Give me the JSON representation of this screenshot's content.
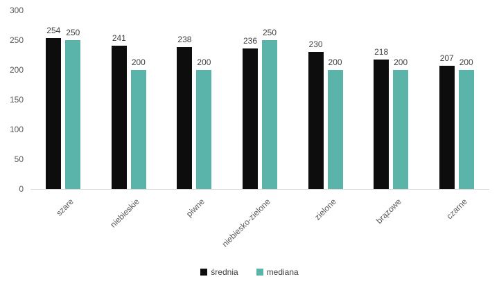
{
  "chart_data": {
    "type": "bar",
    "title": "",
    "xlabel": "",
    "ylabel": "",
    "categories": [
      "szare",
      "niebieskie",
      "piwne",
      "niebiesko-zielone",
      "zielone",
      "brązowe",
      "czarne"
    ],
    "series": [
      {
        "name": "średnia",
        "color": "#0d0d0d",
        "values": [
          254,
          241,
          238,
          236,
          230,
          218,
          207
        ]
      },
      {
        "name": "mediana",
        "color": "#5ab4a9",
        "values": [
          250,
          200,
          200,
          250,
          200,
          200,
          200
        ]
      }
    ],
    "ylim": [
      0,
      300
    ],
    "yticks": [
      0,
      50,
      100,
      150,
      200,
      250,
      300
    ],
    "grid": false,
    "legend_position": "bottom",
    "data_labels": true
  },
  "colors": {
    "axis_line": "#d9d9d9",
    "tick_text": "#595959",
    "value_text": "#404040",
    "background": "#ffffff"
  }
}
